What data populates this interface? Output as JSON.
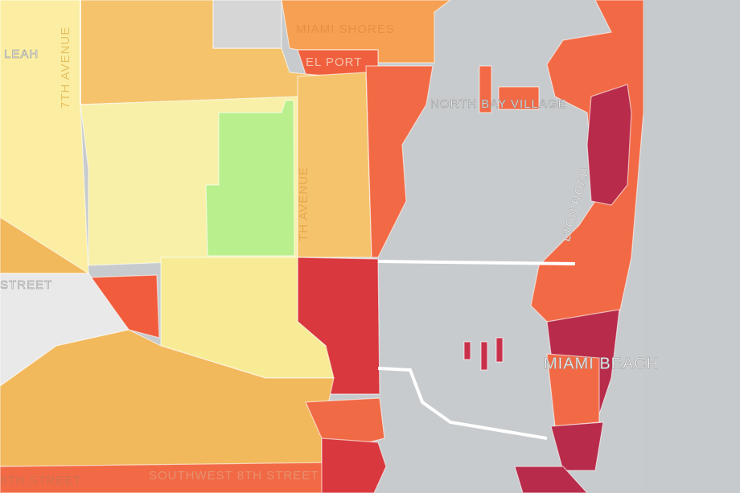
{
  "labels": {
    "hialeah": "LEAH",
    "miami_shores": "MIAMI SHORES",
    "el_portal": "EL PORT",
    "north_bay_village": "NORTH BAY VILLAGE",
    "miami_beach": "MIAMI BEACH",
    "street_left": "STREET",
    "street_bottom_left": "8TH STREET",
    "southwest_8th": "SOUTHWEST 8TH STREET",
    "avenue_left": "7TH AVENUE",
    "avenue_center": "TH AVENUE",
    "alton_road": "LTON ROAD"
  }
}
